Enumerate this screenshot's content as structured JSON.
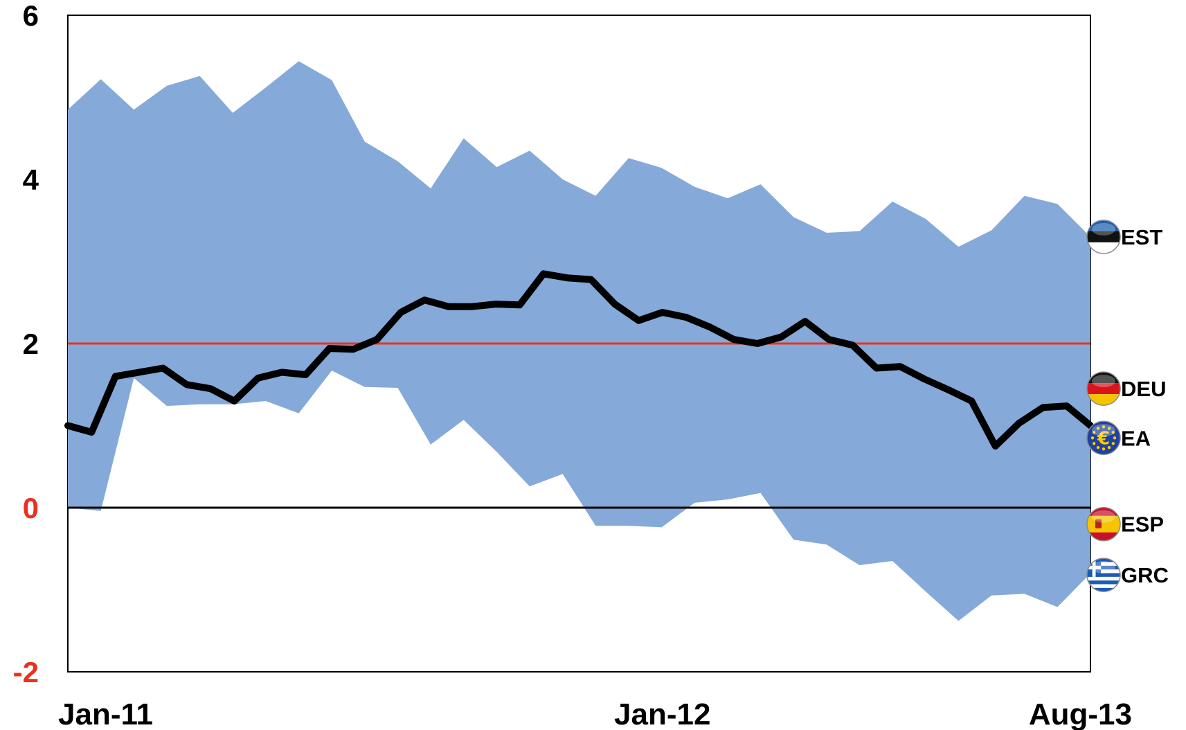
{
  "chart_data": {
    "type": "area",
    "x_tick_labels": [
      "Jan-11",
      "Jan-12",
      "Aug-13"
    ],
    "x_tick_index": [
      1,
      25,
      45
    ],
    "ylim": [
      -2,
      6
    ],
    "y_ticks": [
      {
        "value": 6,
        "label": "6",
        "color": "#000000"
      },
      {
        "value": 4,
        "label": "4",
        "color": "#000000"
      },
      {
        "value": 2,
        "label": "2",
        "color": "#000000"
      },
      {
        "value": 0,
        "label": "0",
        "color": "#e8321e"
      },
      {
        "value": -2,
        "label": "-2",
        "color": "#e8321e"
      }
    ],
    "band_color": "#85a9d9",
    "line_color": "#000000",
    "target_value": 2,
    "target_color": "#e8321e",
    "zero_line_color": "#000000",
    "grid": false,
    "range_upper": [
      4.85,
      5.22,
      4.85,
      5.14,
      5.26,
      4.81,
      5.12,
      5.44,
      5.21,
      4.46,
      4.22,
      3.89,
      4.5,
      4.15,
      4.35,
      4.0,
      3.8,
      4.26,
      4.14,
      3.91,
      3.77,
      3.94,
      3.54,
      3.35,
      3.37,
      3.73,
      3.52,
      3.18,
      3.38,
      3.8,
      3.7,
      3.3
    ],
    "range_lower": [
      0.0,
      -0.04,
      1.58,
      1.24,
      1.26,
      1.26,
      1.3,
      1.15,
      1.67,
      1.47,
      1.46,
      0.77,
      1.07,
      0.68,
      0.26,
      0.41,
      -0.22,
      -0.22,
      -0.24,
      0.06,
      0.1,
      0.18,
      -0.39,
      -0.45,
      -0.7,
      -0.65,
      -1.02,
      -1.38,
      -1.07,
      -1.05,
      -1.21,
      -0.8
    ],
    "series": [
      {
        "name": "EA",
        "values": [
          1.0,
          0.92,
          1.6,
          1.65,
          1.7,
          1.5,
          1.45,
          1.3,
          1.58,
          1.65,
          1.62,
          1.94,
          1.93,
          2.05,
          2.38,
          2.53,
          2.45,
          2.45,
          2.48,
          2.47,
          2.85,
          2.8,
          2.78,
          2.48,
          2.28,
          2.38,
          2.32,
          2.2,
          2.05,
          2.0,
          2.08,
          2.27,
          2.05,
          1.98,
          1.7,
          1.72,
          1.57,
          1.44,
          1.3,
          0.75,
          1.03,
          1.22,
          1.24,
          1.0
        ]
      }
    ],
    "markers": [
      {
        "label": "EST",
        "value": 3.3,
        "flag": "estonia"
      },
      {
        "label": "DEU",
        "value": 1.45,
        "flag": "germany"
      },
      {
        "label": "EA",
        "value": 0.85,
        "flag": "euro-area"
      },
      {
        "label": "ESP",
        "value": -0.2,
        "flag": "spain"
      },
      {
        "label": "GRC",
        "value": -0.82,
        "flag": "greece"
      }
    ]
  }
}
